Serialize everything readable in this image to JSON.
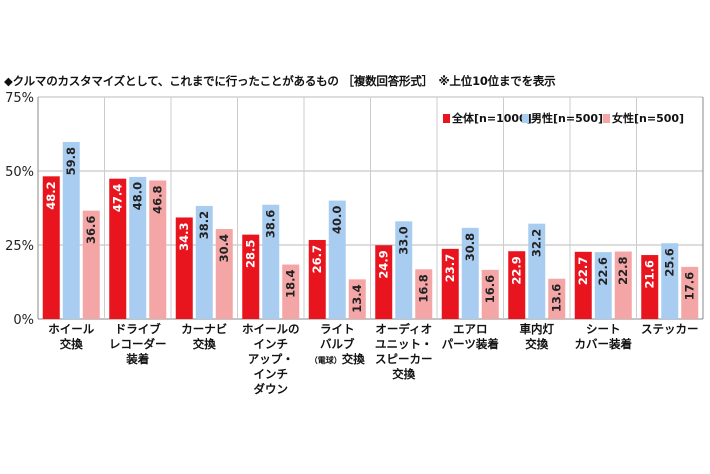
{
  "chart_data": {
    "type": "bar",
    "title": "◆クルマのカスタマイズとして、これまでに行ったことがあるもの ［複数回答形式］　※上位10位までを表示",
    "ylim": [
      0,
      75
    ],
    "yticks": [
      "0%",
      "25%",
      "50%",
      "75%"
    ],
    "grid": true,
    "legend_position": "top-right",
    "categories": [
      [
        "ホイール",
        "交換"
      ],
      [
        "ドライブ",
        "レコーダー",
        "装着"
      ],
      [
        "カーナビ",
        "交換"
      ],
      [
        "ホイールの",
        "インチ",
        "アップ・",
        "インチ",
        "ダウン"
      ],
      [
        "ライト",
        "バルブ",
        "（電球）交換"
      ],
      [
        "オーディオ",
        "ユニット・",
        "スピーカー",
        "交換"
      ],
      [
        "エアロ",
        "パーツ装着"
      ],
      [
        "車内灯",
        "交換"
      ],
      [
        "シート",
        "カバー装着"
      ],
      [
        "ステッカー"
      ]
    ],
    "series": [
      {
        "name": "全体[n=1000]",
        "color": "#e8141e",
        "values": [
          48.2,
          47.4,
          34.3,
          28.5,
          26.7,
          24.9,
          23.7,
          22.9,
          22.7,
          21.6
        ]
      },
      {
        "name": "男性[n=500]",
        "color": "#a9cdf0",
        "values": [
          59.8,
          48.0,
          38.2,
          38.6,
          40.0,
          33.0,
          30.8,
          32.2,
          22.6,
          25.6
        ]
      },
      {
        "name": "女性[n=500]",
        "color": "#f4a6a6",
        "values": [
          36.6,
          46.8,
          30.4,
          18.4,
          13.4,
          16.8,
          16.6,
          13.6,
          22.8,
          17.6
        ]
      }
    ]
  }
}
